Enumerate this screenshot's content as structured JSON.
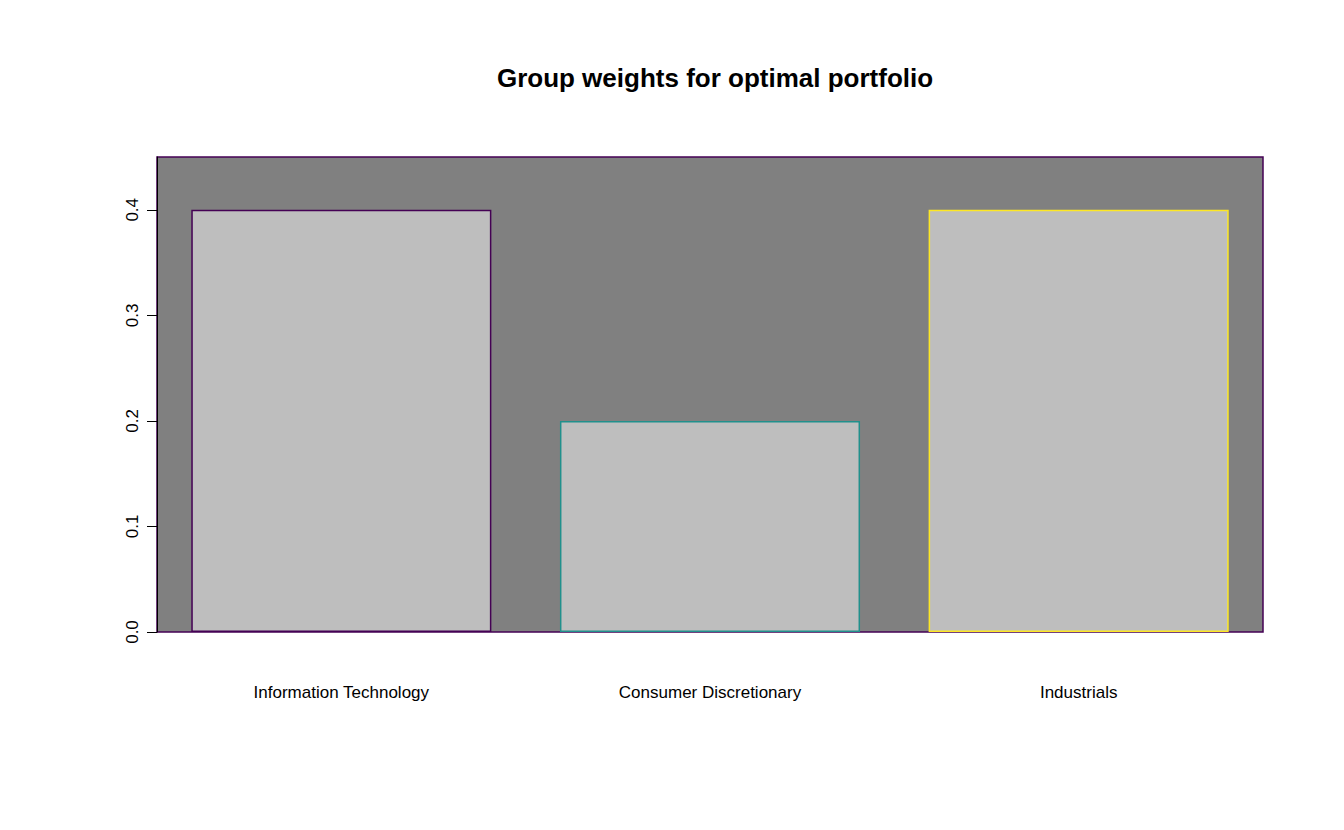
{
  "chart_data": {
    "type": "bar",
    "title": "Group weights for optimal portfolio",
    "categories": [
      "Information Technology",
      "Consumer Discretionary",
      "Industrials"
    ],
    "values": [
      0.4,
      0.2,
      0.4
    ],
    "colors": [
      "#440154",
      "#21908C",
      "#FDE725"
    ],
    "ylim": [
      0,
      0.45
    ],
    "yticks": [
      {
        "value": 0,
        "label": "0.0"
      },
      0.1,
      0.2,
      0.3,
      0.4
    ],
    "grid": false
  }
}
